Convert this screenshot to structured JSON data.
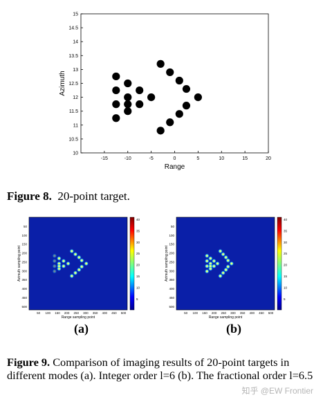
{
  "figure8": {
    "caption_label": "Figure 8.",
    "caption_text": "20-point target."
  },
  "figure9": {
    "label_a": "(a)",
    "label_b": "(b)",
    "caption_label": "Figure 9.",
    "caption_text": "Comparison of imaging results of 20-point targets in different modes (a). Integer order l=6 (b). The fractional order l=6.5"
  },
  "watermark": "知乎 @EW Frontier",
  "colors": {
    "jet_background": "#0a1fa8",
    "point_color": "#000000"
  },
  "chart_data": [
    {
      "type": "scatter",
      "title": "",
      "xlabel": "Range",
      "ylabel": "Azimuth",
      "xlim": [
        -20,
        20
      ],
      "ylim": [
        10,
        15
      ],
      "xticks": [
        "-15",
        "-10",
        "-5",
        "0",
        "5",
        "10",
        "15",
        "20"
      ],
      "yticks": [
        "10",
        "10.5",
        "11",
        "11.5",
        "12",
        "12.5",
        "13",
        "13.5",
        "14",
        "14.5",
        "15"
      ],
      "grid": false,
      "series": [
        {
          "x": [
            -12.5,
            -12.5,
            -12.5,
            -12.5,
            -10,
            -10,
            -10,
            -10,
            -7.5,
            -7.5,
            -5,
            -3,
            -3,
            -1,
            -1,
            1,
            1,
            2.5,
            2.5,
            5
          ],
          "y": [
            12.75,
            12.25,
            11.75,
            11.25,
            12.5,
            12.0,
            11.5,
            11.75,
            12.25,
            11.75,
            12.0,
            13.2,
            10.8,
            12.9,
            11.1,
            12.6,
            11.4,
            12.3,
            11.7,
            12.0
          ]
        }
      ]
    },
    {
      "type": "heatmap",
      "panel": "(a)",
      "xlabel": "Range sampling point",
      "ylabel": "Azimuth sampling point",
      "xticks": [
        "50",
        "100",
        "150",
        "200",
        "250",
        "300",
        "350",
        "400",
        "450",
        "500"
      ],
      "yticks": [
        "50",
        "100",
        "150",
        "200",
        "250",
        "300",
        "350",
        "400",
        "450",
        "500"
      ],
      "colorbar_ticks": [
        "40",
        "35",
        "30",
        "25",
        "20",
        "15",
        "10",
        "5"
      ]
    },
    {
      "type": "heatmap",
      "panel": "(b)",
      "xlabel": "Range sampling point",
      "ylabel": "Azimuth sampling point",
      "xticks": [
        "50",
        "100",
        "150",
        "200",
        "250",
        "300",
        "350",
        "400",
        "450",
        "500"
      ],
      "yticks": [
        "50",
        "100",
        "150",
        "200",
        "250",
        "300",
        "350",
        "400",
        "450",
        "500"
      ],
      "colorbar_ticks": [
        "40",
        "35",
        "30",
        "25",
        "20",
        "15",
        "10",
        "5"
      ]
    }
  ]
}
